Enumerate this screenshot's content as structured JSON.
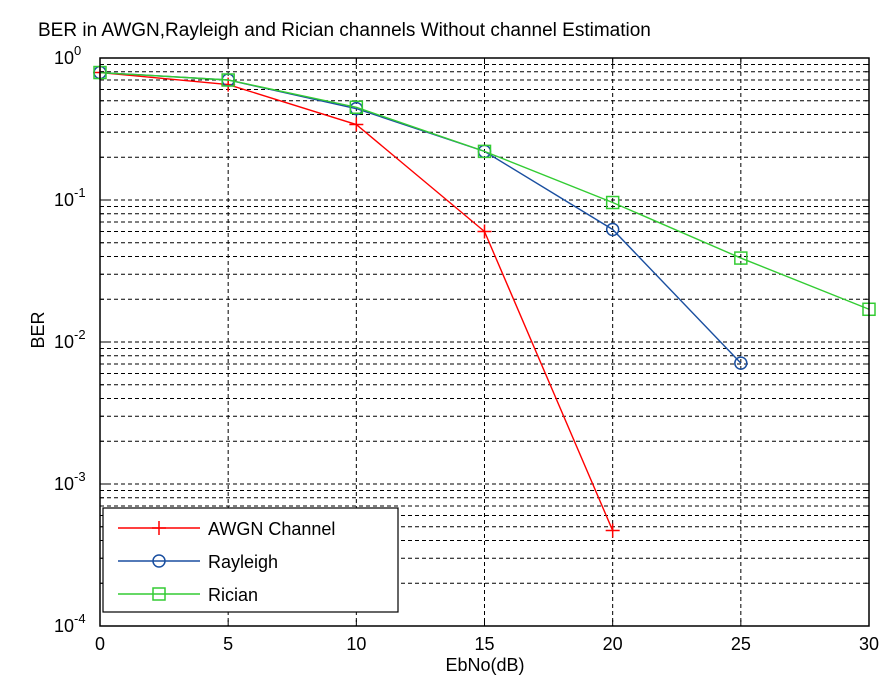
{
  "chart_data": {
    "type": "line",
    "title": "BER in AWGN,Rayleigh and Rician channels Without channel Estimation",
    "xlabel": "EbNo(dB)",
    "ylabel": "BER",
    "xlim": [
      0,
      30
    ],
    "ylim": [
      0.0001,
      1
    ],
    "yscale": "log",
    "grid": true,
    "legend_position": "bottom-left",
    "x_ticks": [
      "0",
      "5",
      "10",
      "15",
      "20",
      "25",
      "30"
    ],
    "y_ticks": [
      {
        "base": "10",
        "exp": "0"
      },
      {
        "base": "10",
        "exp": "-1"
      },
      {
        "base": "10",
        "exp": "-2"
      },
      {
        "base": "10",
        "exp": "-3"
      },
      {
        "base": "10",
        "exp": "-4"
      }
    ],
    "series": [
      {
        "name": "AWGN Channel",
        "color": "#ff0000",
        "marker": "plus",
        "x": [
          0,
          5,
          10,
          15,
          20
        ],
        "y": [
          0.79,
          0.65,
          0.34,
          0.06,
          0.00047
        ]
      },
      {
        "name": "Rayleigh",
        "color": "#1a4fa0",
        "marker": "circle",
        "x": [
          0,
          5,
          10,
          15,
          20,
          25
        ],
        "y": [
          0.79,
          0.7,
          0.44,
          0.22,
          0.062,
          0.0071
        ]
      },
      {
        "name": "Rician",
        "color": "#33cc33",
        "marker": "square",
        "x": [
          0,
          5,
          10,
          15,
          20,
          25,
          30
        ],
        "y": [
          0.79,
          0.7,
          0.45,
          0.22,
          0.096,
          0.039,
          0.017
        ]
      }
    ]
  }
}
